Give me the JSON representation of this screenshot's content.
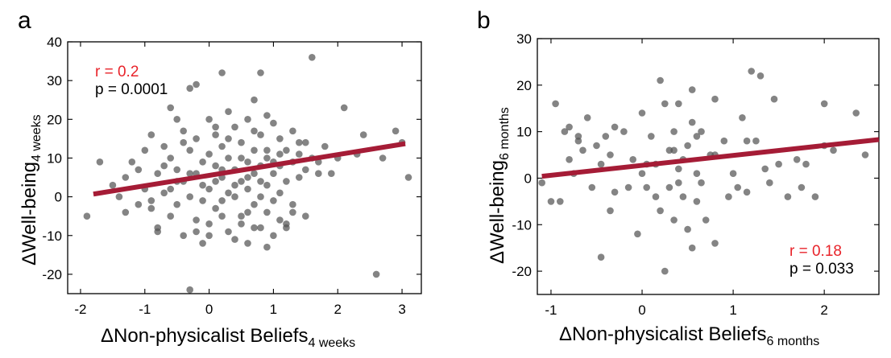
{
  "chart_data": [
    {
      "panel": "a",
      "type": "scatter",
      "title": "",
      "xlabel": "ΔNon-physicalist Beliefs",
      "xlabel_sub": "4 weeks",
      "ylabel": "ΔWell-being",
      "ylabel_sub": "4 weeks",
      "xlim": [
        -2.2,
        3.3
      ],
      "ylim": [
        -25,
        40
      ],
      "xticks": [
        -2,
        -1,
        0,
        1,
        2,
        3
      ],
      "yticks": [
        -20,
        -10,
        0,
        10,
        20,
        30,
        40
      ],
      "fit_line": {
        "x": [
          -1.8,
          3.05
        ],
        "y": [
          0.7,
          13.7
        ],
        "color": "#a51c36"
      },
      "stats": {
        "r": "r = 0.2",
        "p": "p = 0.0001"
      },
      "stats_position": "top-left",
      "marker_color": "#555555",
      "points": [
        [
          -1.9,
          -5
        ],
        [
          -1.7,
          9
        ],
        [
          -1.5,
          3
        ],
        [
          -1.4,
          0
        ],
        [
          -1.3,
          -4
        ],
        [
          -1.2,
          9
        ],
        [
          -1.1,
          7
        ],
        [
          -1.0,
          12
        ],
        [
          -1.0,
          2
        ],
        [
          -0.9,
          -3
        ],
        [
          -0.9,
          16
        ],
        [
          -0.8,
          6
        ],
        [
          -0.8,
          -8
        ],
        [
          -0.7,
          13
        ],
        [
          -0.7,
          1
        ],
        [
          -0.6,
          10
        ],
        [
          -0.6,
          -5
        ],
        [
          -0.5,
          7
        ],
        [
          -0.5,
          -2
        ],
        [
          -0.4,
          17
        ],
        [
          -0.4,
          4
        ],
        [
          -0.4,
          -10
        ],
        [
          -0.3,
          28
        ],
        [
          -0.3,
          12
        ],
        [
          -0.3,
          0
        ],
        [
          -0.2,
          29
        ],
        [
          -0.2,
          15
        ],
        [
          -0.2,
          6
        ],
        [
          -0.2,
          -6
        ],
        [
          -0.1,
          9
        ],
        [
          -0.1,
          3
        ],
        [
          -0.1,
          -1
        ],
        [
          0.0,
          20
        ],
        [
          0.0,
          11
        ],
        [
          0.0,
          2
        ],
        [
          0.0,
          -7
        ],
        [
          0.1,
          16
        ],
        [
          0.1,
          8
        ],
        [
          0.1,
          -3
        ],
        [
          0.2,
          32
        ],
        [
          0.2,
          13
        ],
        [
          0.2,
          5
        ],
        [
          0.2,
          -1
        ],
        [
          0.3,
          10
        ],
        [
          0.3,
          1
        ],
        [
          0.3,
          -9
        ],
        [
          0.4,
          18
        ],
        [
          0.4,
          7
        ],
        [
          0.4,
          0
        ],
        [
          0.5,
          14
        ],
        [
          0.5,
          4
        ],
        [
          0.5,
          -5
        ],
        [
          0.6,
          20
        ],
        [
          0.6,
          9
        ],
        [
          0.6,
          2
        ],
        [
          0.7,
          25
        ],
        [
          0.7,
          12
        ],
        [
          0.7,
          6
        ],
        [
          0.7,
          -2
        ],
        [
          0.8,
          32
        ],
        [
          0.8,
          16
        ],
        [
          0.8,
          8
        ],
        [
          0.8,
          0
        ],
        [
          0.9,
          10
        ],
        [
          0.9,
          3
        ],
        [
          0.9,
          -4
        ],
        [
          1.0,
          19
        ],
        [
          1.0,
          6
        ],
        [
          1.0,
          -1
        ],
        [
          1.1,
          15
        ],
        [
          1.1,
          8
        ],
        [
          1.1,
          1
        ],
        [
          1.2,
          12
        ],
        [
          1.2,
          4
        ],
        [
          1.2,
          -7
        ],
        [
          1.3,
          17
        ],
        [
          1.3,
          9
        ],
        [
          1.3,
          -2
        ],
        [
          1.4,
          11
        ],
        [
          1.4,
          5
        ],
        [
          1.5,
          14
        ],
        [
          1.5,
          7
        ],
        [
          1.6,
          36
        ],
        [
          1.6,
          10
        ],
        [
          1.7,
          9
        ],
        [
          1.8,
          13
        ],
        [
          1.9,
          6
        ],
        [
          2.1,
          23
        ],
        [
          2.3,
          11
        ],
        [
          2.4,
          16
        ],
        [
          2.6,
          -20
        ],
        [
          2.7,
          10
        ],
        [
          2.9,
          17
        ],
        [
          3.0,
          14
        ],
        [
          3.1,
          5
        ],
        [
          -0.3,
          -24
        ],
        [
          -0.5,
          20
        ],
        [
          0.4,
          -11
        ],
        [
          0.9,
          -13
        ],
        [
          1.2,
          -8
        ],
        [
          0.0,
          -10
        ],
        [
          -0.8,
          -9
        ],
        [
          0.6,
          -12
        ],
        [
          1.5,
          -5
        ],
        [
          -1.3,
          5
        ],
        [
          0.3,
          22
        ],
        [
          -0.6,
          23
        ],
        [
          0.8,
          -8
        ],
        [
          1.0,
          -10
        ],
        [
          -0.1,
          -12
        ],
        [
          0.5,
          -7
        ],
        [
          0.6,
          -4
        ],
        [
          1.1,
          -6
        ],
        [
          -0.2,
          -9
        ],
        [
          0.2,
          -5
        ],
        [
          0.7,
          -8
        ],
        [
          1.3,
          -4
        ],
        [
          -0.9,
          -1
        ],
        [
          0.1,
          18
        ],
        [
          0.9,
          21
        ],
        [
          1.4,
          14
        ],
        [
          -0.4,
          14
        ],
        [
          0.3,
          15
        ],
        [
          0.7,
          17
        ],
        [
          1.1,
          11
        ],
        [
          -0.7,
          8
        ],
        [
          -1.1,
          -2
        ],
        [
          0.5,
          10
        ],
        [
          1.7,
          6
        ],
        [
          2.0,
          10
        ],
        [
          -0.3,
          6
        ],
        [
          0.1,
          4
        ],
        [
          0.4,
          3
        ],
        [
          0.6,
          5
        ],
        [
          0.8,
          4
        ],
        [
          -0.5,
          4
        ],
        [
          0.2,
          7
        ],
        [
          1.0,
          9
        ],
        [
          -0.6,
          2
        ],
        [
          0.9,
          12
        ]
      ]
    },
    {
      "panel": "b",
      "type": "scatter",
      "title": "",
      "xlabel": "ΔNon-physicalist Beliefs",
      "xlabel_sub": "6 months",
      "ylabel": "ΔWell-being",
      "ylabel_sub": "6 months",
      "xlim": [
        -1.15,
        2.6
      ],
      "ylim": [
        -25,
        30
      ],
      "xticks": [
        -1,
        0,
        1,
        2
      ],
      "yticks": [
        -20,
        -10,
        0,
        10,
        20,
        30
      ],
      "fit_line": {
        "x": [
          -1.1,
          2.6
        ],
        "y": [
          0.4,
          8.3
        ],
        "color": "#a51c36"
      },
      "stats": {
        "r": "r = 0.18",
        "p": "p = 0.033"
      },
      "stats_position": "bottom-right",
      "marker_color": "#555555",
      "points": [
        [
          -1.1,
          -1
        ],
        [
          -1.0,
          -5
        ],
        [
          -0.95,
          16
        ],
        [
          -0.9,
          -5
        ],
        [
          -0.85,
          10
        ],
        [
          -0.8,
          11
        ],
        [
          -0.8,
          4
        ],
        [
          -0.75,
          1
        ],
        [
          -0.7,
          8
        ],
        [
          -0.65,
          6
        ],
        [
          -0.6,
          13
        ],
        [
          -0.55,
          -2
        ],
        [
          -0.5,
          7
        ],
        [
          -0.45,
          -17
        ],
        [
          -0.45,
          3
        ],
        [
          -0.4,
          9
        ],
        [
          -0.35,
          -7
        ],
        [
          -0.35,
          5
        ],
        [
          -0.3,
          11
        ],
        [
          -0.3,
          -3
        ],
        [
          -0.2,
          10
        ],
        [
          -0.15,
          -2
        ],
        [
          -0.1,
          4
        ],
        [
          -0.05,
          -12
        ],
        [
          0.0,
          14
        ],
        [
          0.0,
          1
        ],
        [
          0.05,
          -2
        ],
        [
          0.1,
          9
        ],
        [
          0.15,
          3
        ],
        [
          0.2,
          21
        ],
        [
          0.2,
          -7
        ],
        [
          0.25,
          16
        ],
        [
          0.25,
          -20
        ],
        [
          0.3,
          6
        ],
        [
          0.3,
          -2
        ],
        [
          0.35,
          10
        ],
        [
          0.35,
          -9
        ],
        [
          0.4,
          16
        ],
        [
          0.4,
          2
        ],
        [
          0.45,
          4
        ],
        [
          0.45,
          -4
        ],
        [
          0.5,
          7
        ],
        [
          0.5,
          -11
        ],
        [
          0.55,
          19
        ],
        [
          0.55,
          -15
        ],
        [
          0.6,
          1
        ],
        [
          0.6,
          -5
        ],
        [
          0.65,
          10
        ],
        [
          0.65,
          -1
        ],
        [
          0.7,
          -9
        ],
        [
          0.8,
          17
        ],
        [
          0.8,
          5
        ],
        [
          0.8,
          -14
        ],
        [
          0.9,
          8
        ],
        [
          0.95,
          -4
        ],
        [
          1.0,
          1
        ],
        [
          1.05,
          -2
        ],
        [
          1.1,
          13
        ],
        [
          1.15,
          -3
        ],
        [
          1.2,
          23
        ],
        [
          1.25,
          8
        ],
        [
          1.3,
          22
        ],
        [
          1.35,
          2
        ],
        [
          1.4,
          -1
        ],
        [
          1.45,
          17
        ],
        [
          1.5,
          3
        ],
        [
          1.6,
          -4
        ],
        [
          1.7,
          4
        ],
        [
          1.75,
          -2
        ],
        [
          1.8,
          3
        ],
        [
          1.9,
          -4
        ],
        [
          2.0,
          16
        ],
        [
          2.0,
          7
        ],
        [
          2.1,
          6
        ],
        [
          2.35,
          14
        ],
        [
          2.45,
          5
        ],
        [
          0.4,
          -1
        ],
        [
          0.55,
          12
        ],
        [
          0.75,
          5
        ],
        [
          1.15,
          8
        ],
        [
          -0.7,
          9
        ],
        [
          0.15,
          -4
        ],
        [
          0.35,
          6
        ],
        [
          0.6,
          9
        ],
        [
          0.05,
          3
        ]
      ]
    }
  ]
}
